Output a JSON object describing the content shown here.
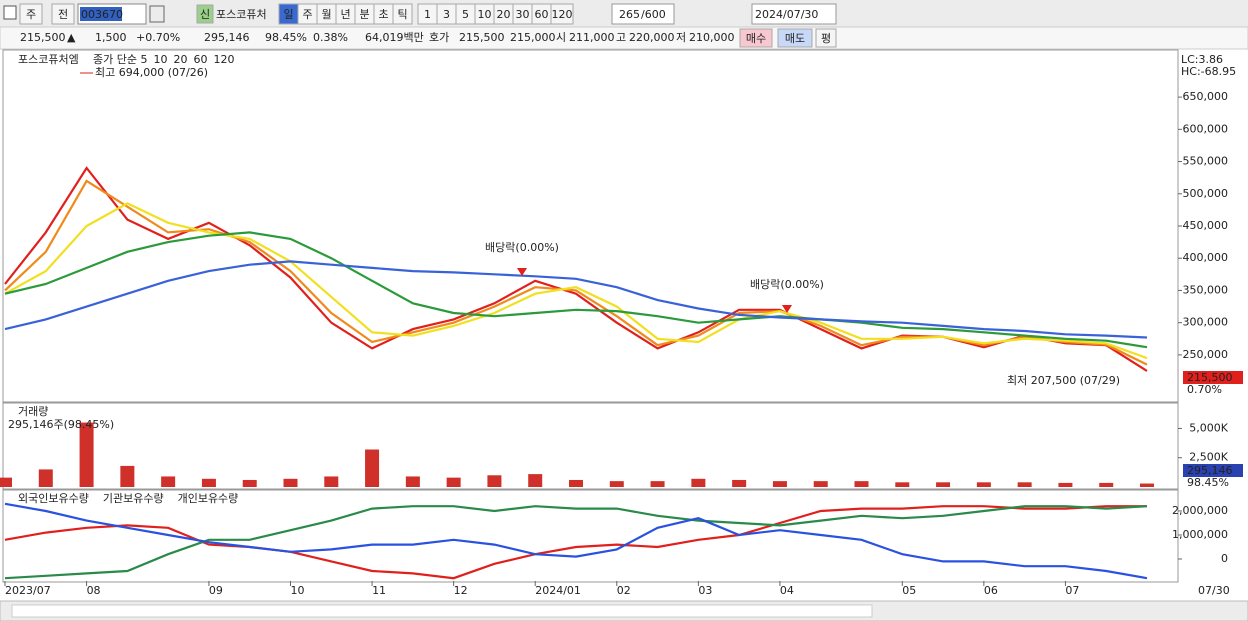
{
  "toolbar": {
    "period_buttons": [
      "주",
      "전"
    ],
    "code": "003670",
    "badge": "신",
    "name": "포스코퓨처",
    "intervals": [
      "일",
      "주",
      "월",
      "년",
      "분",
      "초",
      "틱"
    ],
    "minutes": [
      "1",
      "3",
      "5",
      "10",
      "20",
      "30",
      "60",
      "120"
    ],
    "count": "265",
    "max": "/600",
    "date": "2024/07/30"
  },
  "info_bar": {
    "price": "215,500",
    "arrow": "▲",
    "change": "1,500",
    "change_pct": "+0.70%",
    "volume": "295,146",
    "volume_ratio": "98.45%",
    "turnover": "0.38%",
    "amount": "64,019백만",
    "quote_label": "호가",
    "ask": "215,500",
    "bid": "215,000",
    "open_label": "시",
    "open": "211,000",
    "high_label": "고",
    "high": "220,000",
    "low_label": "저",
    "low": "210,000",
    "buttons": [
      "매수",
      "매도",
      "평"
    ]
  },
  "x_end_label": "07/30",
  "chart_data": [
    {
      "type": "line",
      "title": "포스코퓨처엠",
      "categories": [
        "2023/07",
        null,
        "08",
        null,
        null,
        "09",
        null,
        "10",
        null,
        "11",
        null,
        "12",
        null,
        "2024/01",
        null,
        "02",
        null,
        "03",
        null,
        "04",
        null,
        null,
        "05",
        null,
        "06",
        null,
        "07",
        null,
        null
      ],
      "series": [
        {
          "name": "종가 단순 5",
          "color": "#e0201c",
          "values": [
            360000,
            440000,
            540000,
            460000,
            430000,
            455000,
            420000,
            370000,
            300000,
            260000,
            290000,
            305000,
            330000,
            365000,
            345000,
            300000,
            260000,
            285000,
            320000,
            320000,
            290000,
            260000,
            280000,
            278000,
            262000,
            280000,
            268000,
            265000,
            225000
          ]
        },
        {
          "name": "10",
          "color": "#f08a1c",
          "values": [
            350000,
            410000,
            520000,
            480000,
            440000,
            445000,
            425000,
            380000,
            315000,
            270000,
            285000,
            300000,
            325000,
            355000,
            350000,
            310000,
            265000,
            280000,
            315000,
            318000,
            295000,
            265000,
            278000,
            278000,
            265000,
            278000,
            270000,
            266000,
            235000
          ]
        },
        {
          "name": "20",
          "color": "#f0e020",
          "values": [
            345000,
            380000,
            450000,
            485000,
            455000,
            440000,
            430000,
            395000,
            340000,
            285000,
            280000,
            295000,
            315000,
            345000,
            355000,
            325000,
            275000,
            270000,
            305000,
            318000,
            300000,
            275000,
            275000,
            278000,
            268000,
            275000,
            272000,
            268000,
            245000
          ]
        },
        {
          "name": "60",
          "color": "#2a9a3a",
          "values": [
            345000,
            360000,
            385000,
            410000,
            425000,
            435000,
            440000,
            430000,
            400000,
            365000,
            330000,
            315000,
            310000,
            315000,
            320000,
            318000,
            310000,
            300000,
            305000,
            310000,
            305000,
            300000,
            292000,
            290000,
            285000,
            280000,
            275000,
            272000,
            262000
          ]
        },
        {
          "name": "120",
          "color": "#3a62d8",
          "values": [
            290000,
            305000,
            325000,
            345000,
            365000,
            380000,
            390000,
            395000,
            390000,
            385000,
            380000,
            378000,
            375000,
            372000,
            368000,
            355000,
            335000,
            322000,
            312000,
            308000,
            305000,
            302000,
            300000,
            295000,
            290000,
            287000,
            282000,
            280000,
            277000
          ]
        }
      ],
      "ylim": [
        180000,
        720000
      ],
      "yticks": [
        {
          "value": 250000,
          "label": "250,000"
        },
        {
          "value": 300000,
          "label": "300,000"
        },
        {
          "value": 350000,
          "label": "350,000"
        },
        {
          "value": 400000,
          "label": "400,000"
        },
        {
          "value": 450000,
          "label": "450,000"
        },
        {
          "value": 500000,
          "label": "500,000"
        },
        {
          "value": 550000,
          "label": "550,000"
        },
        {
          "value": 600000,
          "label": "600,000"
        },
        {
          "value": 650000,
          "label": "650,000"
        }
      ],
      "grid": false,
      "high_label": "최고 694,000 (07/26)",
      "low_label": "최저 207,500 (07/29)",
      "dividend_labels": [
        "배당락(0.00%)",
        "배당락(0.00%)"
      ],
      "lc_label": "LC:3.86",
      "hc_label": "HC:-68.95",
      "last_price_label": "215,500",
      "change_label": "0.70%"
    },
    {
      "type": "bar",
      "title": "거래량",
      "subtitle": "295,146주(98.45%)",
      "color": "#d0302a",
      "values": [
        800,
        1500,
        5500,
        1800,
        900,
        700,
        600,
        700,
        900,
        3200,
        900,
        800,
        1000,
        1100,
        600,
        500,
        500,
        700,
        600,
        500,
        500,
        500,
        400,
        400,
        400,
        400,
        350,
        350,
        295.146
      ],
      "ylim": [
        0,
        7000
      ],
      "yticks": [
        {
          "value": 2500,
          "label": "2,500K"
        },
        {
          "value": 5000,
          "label": "5,000K"
        }
      ],
      "last_volume_label": "295,146",
      "ratio_label": "98.45%"
    },
    {
      "type": "line",
      "series": [
        {
          "name": "외국인보유수량",
          "color": "#e0201c",
          "values": [
            800000,
            1100000,
            1300000,
            1400000,
            1300000,
            600000,
            500000,
            300000,
            -100000,
            -500000,
            -600000,
            -800000,
            -200000,
            200000,
            500000,
            600000,
            500000,
            800000,
            1000000,
            1500000,
            2000000,
            2100000,
            2100000,
            2200000,
            2200000,
            2100000,
            2100000,
            2200000,
            2200000
          ]
        },
        {
          "name": "기관보유수량",
          "color": "#2a8a4a",
          "values": [
            -800000,
            -700000,
            -600000,
            -500000,
            200000,
            800000,
            800000,
            1200000,
            1600000,
            2100000,
            2200000,
            2200000,
            2000000,
            2200000,
            2100000,
            2100000,
            1800000,
            1600000,
            1500000,
            1400000,
            1600000,
            1800000,
            1700000,
            1800000,
            2000000,
            2200000,
            2200000,
            2100000,
            2200000
          ]
        },
        {
          "name": "개인보유수량",
          "color": "#2a52e0",
          "values": [
            2300000,
            2000000,
            1600000,
            1300000,
            1000000,
            700000,
            500000,
            300000,
            400000,
            600000,
            600000,
            800000,
            600000,
            200000,
            100000,
            400000,
            1300000,
            1700000,
            1000000,
            1200000,
            1000000,
            800000,
            200000,
            -100000,
            -100000,
            -300000,
            -300000,
            -500000,
            -800000
          ]
        }
      ],
      "ylim": [
        -875000,
        2790000
      ],
      "yticks": [
        0,
        {
          "value": 1000000,
          "label": "1,000,000"
        },
        {
          "value": 2000000,
          "label": "2,000,000"
        }
      ]
    }
  ]
}
